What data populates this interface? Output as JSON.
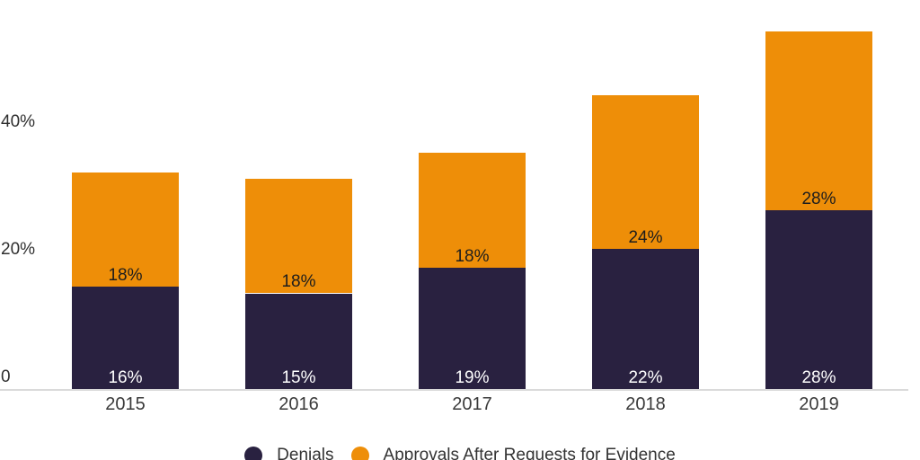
{
  "chart_data": {
    "type": "bar",
    "variant": "stacked-column",
    "title": "",
    "categories": [
      "2015",
      "2016",
      "2017",
      "2018",
      "2019"
    ],
    "series": [
      {
        "name": "Denials",
        "color": "#292140",
        "label_color": "#ffffff",
        "values": [
          16,
          15,
          19,
          22,
          28
        ],
        "labels": [
          "16%",
          "15%",
          "19%",
          "22%",
          "28%"
        ]
      },
      {
        "name": "Approvals After Requests for Evidence",
        "color": "#ee8e08",
        "label_color": "#1d1d1d",
        "values": [
          18,
          18,
          18,
          24,
          28
        ],
        "labels": [
          "18%",
          "18%",
          "18%",
          "24%",
          "28%"
        ]
      }
    ],
    "y_axis": {
      "ticks": [
        {
          "value": 0,
          "label": "0"
        },
        {
          "value": 20,
          "label": "20%"
        },
        {
          "value": 40,
          "label": "40%"
        }
      ],
      "range": [
        0,
        56
      ],
      "unit": "%"
    },
    "grid": false,
    "legend_position": "bottom-center",
    "axis_line_color": "#dadada",
    "text_color": "#2f2f2f"
  }
}
